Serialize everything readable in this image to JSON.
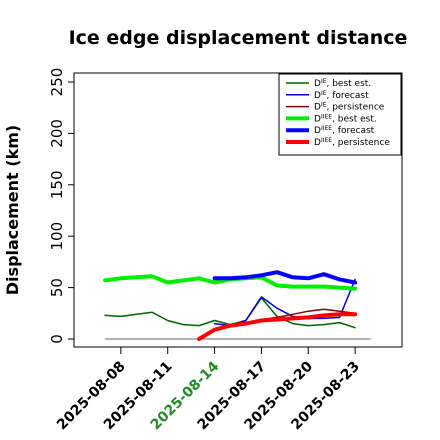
{
  "chart_data": {
    "type": "line",
    "title": "Ice edge displacement distance",
    "ylabel": "Displacement (km)",
    "xlabel": "",
    "ylim": [
      0,
      260
    ],
    "yticks": [
      0,
      50,
      100,
      150,
      200,
      250
    ],
    "xlim": [
      "2025-08-05",
      "2025-08-26"
    ],
    "xticks": [
      "2025-08-08",
      "2025-08-11",
      "2025-08-14",
      "2025-08-17",
      "2025-08-20",
      "2025-08-23"
    ],
    "highlight_tick": "2025-08-14",
    "highlight_color": "#228B22",
    "grid": false,
    "legend_position": "top-right",
    "reference_line": {
      "y": 0,
      "from": "2025-08-07",
      "to": "2025-08-24",
      "color": "#666666"
    },
    "series": [
      {
        "name": "D^IE, best est.",
        "legend_main": "D",
        "legend_sup": "IE",
        "legend_tail": ", best est.",
        "color": "#006400",
        "width": 1.5,
        "x": [
          "2025-08-07",
          "2025-08-08",
          "2025-08-09",
          "2025-08-10",
          "2025-08-11",
          "2025-08-12",
          "2025-08-13",
          "2025-08-14",
          "2025-08-15",
          "2025-08-16",
          "2025-08-17",
          "2025-08-18",
          "2025-08-19",
          "2025-08-20",
          "2025-08-21",
          "2025-08-22",
          "2025-08-23"
        ],
        "y": [
          23,
          22,
          24,
          26,
          18,
          14,
          13,
          18,
          14,
          18,
          40,
          22,
          15,
          13,
          14,
          16,
          11
        ]
      },
      {
        "name": "D^IE, forecast",
        "legend_main": "D",
        "legend_sup": "IE",
        "legend_tail": ", forecast",
        "color": "#0000CD",
        "width": 1.5,
        "x": [
          "2025-08-14",
          "2025-08-15",
          "2025-08-16",
          "2025-08-17",
          "2025-08-18",
          "2025-08-19",
          "2025-08-20",
          "2025-08-21",
          "2025-08-22",
          "2025-08-23"
        ],
        "y": [
          15,
          13,
          18,
          41,
          30,
          22,
          20,
          20,
          21,
          58
        ]
      },
      {
        "name": "D^IE, persistence",
        "legend_main": "D",
        "legend_sup": "IE",
        "legend_tail": ", persistence",
        "color": "#8B0000",
        "width": 1.5,
        "x": [
          "2025-08-13",
          "2025-08-14",
          "2025-08-15",
          "2025-08-16",
          "2025-08-17",
          "2025-08-18",
          "2025-08-19",
          "2025-08-20",
          "2025-08-21",
          "2025-08-22",
          "2025-08-23"
        ],
        "y": [
          0,
          8,
          12,
          16,
          19,
          21,
          24,
          27,
          29,
          27,
          25
        ]
      },
      {
        "name": "D^IIEE, best est.",
        "legend_main": "D",
        "legend_sup": "IIEE",
        "legend_tail": ", best est.",
        "color": "#00EE00",
        "width": 4,
        "x": [
          "2025-08-07",
          "2025-08-08",
          "2025-08-09",
          "2025-08-10",
          "2025-08-11",
          "2025-08-12",
          "2025-08-13",
          "2025-08-14",
          "2025-08-15",
          "2025-08-16",
          "2025-08-17",
          "2025-08-18",
          "2025-08-19",
          "2025-08-20",
          "2025-08-21",
          "2025-08-22",
          "2025-08-23"
        ],
        "y": [
          57,
          59,
          60,
          61,
          55,
          57,
          59,
          55,
          58,
          59,
          60,
          52,
          51,
          51,
          51,
          50,
          49
        ]
      },
      {
        "name": "D^IIEE, forecast",
        "legend_main": "D",
        "legend_sup": "IIEE",
        "legend_tail": ", forecast",
        "color": "#0000FF",
        "width": 4,
        "x": [
          "2025-08-14",
          "2025-08-15",
          "2025-08-16",
          "2025-08-17",
          "2025-08-18",
          "2025-08-19",
          "2025-08-20",
          "2025-08-21",
          "2025-08-22",
          "2025-08-23"
        ],
        "y": [
          59,
          59,
          60,
          62,
          65,
          60,
          59,
          63,
          58,
          55
        ]
      },
      {
        "name": "D^IIEE, persistence",
        "legend_main": "D",
        "legend_sup": "IIEE",
        "legend_tail": ", persistence",
        "color": "#FF0000",
        "width": 4,
        "x": [
          "2025-08-13",
          "2025-08-14",
          "2025-08-15",
          "2025-08-16",
          "2025-08-17",
          "2025-08-18",
          "2025-08-19",
          "2025-08-20",
          "2025-08-21",
          "2025-08-22",
          "2025-08-23"
        ],
        "y": [
          0,
          9,
          13,
          15,
          18,
          19,
          20,
          21,
          23,
          24,
          24
        ]
      }
    ]
  }
}
